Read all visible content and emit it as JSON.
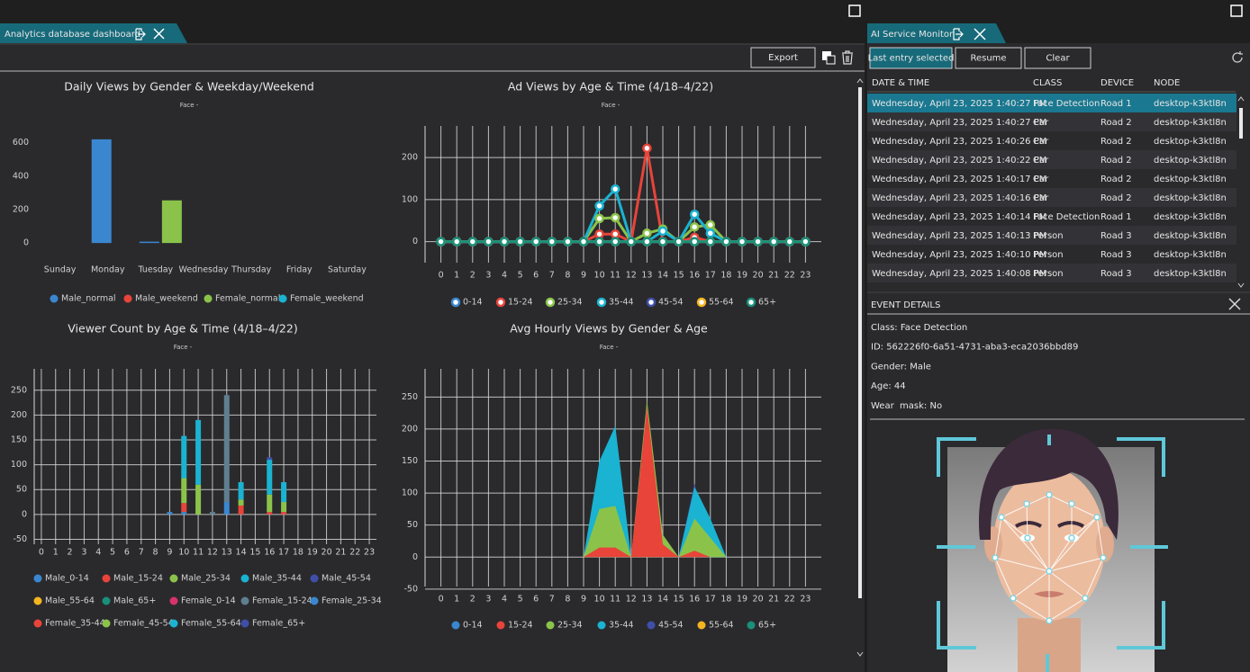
{
  "left_panel": {
    "tab_title": "Analytics database dashboard",
    "export_button": "Export"
  },
  "chart_data": [
    {
      "type": "bar",
      "title": "Daily Views by Gender & Weekday/Weekend",
      "subtitle": "Face -",
      "categories": [
        "Sunday",
        "Monday",
        "Tuesday",
        "Wednesday",
        "Thursday",
        "Friday",
        "Saturday"
      ],
      "series": [
        {
          "name": "Male_normal",
          "color": "#3a87d0",
          "values": [
            0,
            620,
            8,
            0,
            0,
            0,
            0
          ]
        },
        {
          "name": "Male_weekend",
          "color": "#e8443a",
          "values": [
            0,
            0,
            0,
            0,
            0,
            0,
            0
          ]
        },
        {
          "name": "Female_normal",
          "color": "#8bc34a",
          "values": [
            0,
            0,
            255,
            0,
            0,
            0,
            0
          ]
        },
        {
          "name": "Female_weekend",
          "color": "#1ab3d1",
          "values": [
            0,
            0,
            0,
            0,
            0,
            0,
            0
          ]
        }
      ],
      "ylim": [
        -80,
        700
      ],
      "yticks": [
        0,
        200,
        400,
        600
      ],
      "grid": false
    },
    {
      "type": "line",
      "title": "Ad Views by Age & Time (4/18–4/22)",
      "subtitle": "Face -",
      "x": [
        0,
        1,
        2,
        3,
        4,
        5,
        6,
        7,
        8,
        9,
        10,
        11,
        12,
        13,
        14,
        15,
        16,
        17,
        18,
        19,
        20,
        21,
        22,
        23
      ],
      "series": [
        {
          "name": "0-14",
          "color": "#3a87d0",
          "values": [
            0,
            0,
            0,
            0,
            0,
            0,
            0,
            0,
            0,
            0,
            0,
            0,
            0,
            0,
            0,
            0,
            0,
            0,
            0,
            0,
            0,
            0,
            0,
            0
          ]
        },
        {
          "name": "15-24",
          "color": "#e8443a",
          "values": [
            0,
            0,
            0,
            0,
            0,
            0,
            0,
            0,
            0,
            0,
            18,
            18,
            0,
            222,
            0,
            0,
            10,
            0,
            0,
            0,
            0,
            0,
            0,
            0
          ]
        },
        {
          "name": "25-34",
          "color": "#8bc34a",
          "values": [
            0,
            0,
            0,
            0,
            0,
            0,
            0,
            0,
            0,
            0,
            55,
            57,
            0,
            20,
            30,
            0,
            35,
            40,
            0,
            0,
            0,
            0,
            0,
            0
          ]
        },
        {
          "name": "35-44",
          "color": "#1ab3d1",
          "values": [
            0,
            0,
            0,
            0,
            0,
            0,
            0,
            0,
            0,
            0,
            85,
            125,
            0,
            0,
            25,
            0,
            65,
            20,
            0,
            0,
            0,
            0,
            0,
            0
          ]
        },
        {
          "name": "45-54",
          "color": "#3f4fa8",
          "values": [
            0,
            0,
            0,
            0,
            0,
            0,
            0,
            0,
            0,
            0,
            0,
            0,
            0,
            0,
            0,
            0,
            0,
            0,
            0,
            0,
            0,
            0,
            0,
            0
          ]
        },
        {
          "name": "55-64",
          "color": "#f5b51f",
          "values": [
            0,
            0,
            0,
            0,
            0,
            0,
            0,
            0,
            0,
            0,
            0,
            0,
            0,
            0,
            0,
            0,
            0,
            0,
            0,
            0,
            0,
            0,
            0,
            0
          ]
        },
        {
          "name": "65+",
          "color": "#1a8f7a",
          "values": [
            0,
            0,
            0,
            0,
            0,
            0,
            0,
            0,
            0,
            0,
            0,
            0,
            0,
            0,
            0,
            0,
            0,
            0,
            0,
            0,
            0,
            0,
            0,
            0
          ]
        }
      ],
      "xlim": [
        -1,
        24
      ],
      "ylim": [
        -50,
        275
      ],
      "yticks": [
        0,
        100,
        200
      ],
      "grid": true
    },
    {
      "type": "bar",
      "stacked": true,
      "title": "Viewer Count by Age & Time (4/18–4/22)",
      "subtitle": "Face -",
      "x": [
        0,
        1,
        2,
        3,
        4,
        5,
        6,
        7,
        8,
        9,
        10,
        11,
        12,
        13,
        14,
        15,
        16,
        17,
        18,
        19,
        20,
        21,
        22,
        23
      ],
      "series": [
        {
          "name": "Male_0-14",
          "color": "#3a87d0",
          "values": [
            0,
            0,
            0,
            0,
            0,
            0,
            0,
            0,
            0,
            5,
            5,
            0,
            0,
            25,
            0,
            0,
            0,
            0,
            0,
            0,
            0,
            0,
            0,
            0
          ]
        },
        {
          "name": "Male_15-24",
          "color": "#e8443a",
          "values": [
            0,
            0,
            0,
            0,
            0,
            0,
            0,
            0,
            0,
            0,
            18,
            0,
            0,
            0,
            18,
            0,
            5,
            5,
            0,
            0,
            0,
            0,
            0,
            0
          ]
        },
        {
          "name": "Male_25-34",
          "color": "#8bc34a",
          "values": [
            0,
            0,
            0,
            0,
            0,
            0,
            0,
            0,
            0,
            0,
            50,
            60,
            0,
            0,
            12,
            0,
            35,
            20,
            0,
            0,
            0,
            0,
            0,
            0
          ]
        },
        {
          "name": "Male_35-44",
          "color": "#1ab3d1",
          "values": [
            0,
            0,
            0,
            0,
            0,
            0,
            0,
            0,
            0,
            0,
            85,
            130,
            0,
            0,
            35,
            0,
            70,
            40,
            0,
            0,
            0,
            0,
            0,
            0
          ]
        },
        {
          "name": "Male_45-54",
          "color": "#3f4fa8",
          "values": [
            0,
            0,
            0,
            0,
            0,
            0,
            0,
            0,
            0,
            0,
            0,
            0,
            0,
            0,
            0,
            0,
            5,
            0,
            0,
            0,
            0,
            0,
            0,
            0
          ]
        },
        {
          "name": "Male_55-64",
          "color": "#f5b51f",
          "values": [
            0,
            0,
            0,
            0,
            0,
            0,
            0,
            0,
            0,
            0,
            0,
            0,
            0,
            0,
            0,
            0,
            0,
            0,
            0,
            0,
            0,
            0,
            0,
            0
          ]
        },
        {
          "name": "Male_65+",
          "color": "#1a8f7a",
          "values": [
            0,
            0,
            0,
            0,
            0,
            0,
            0,
            0,
            0,
            0,
            0,
            0,
            0,
            0,
            0,
            0,
            0,
            0,
            0,
            0,
            0,
            0,
            0,
            0
          ]
        },
        {
          "name": "Female_0-14",
          "color": "#d6336c",
          "values": [
            0,
            0,
            0,
            0,
            0,
            0,
            0,
            0,
            0,
            0,
            0,
            0,
            0,
            0,
            0,
            0,
            0,
            0,
            0,
            0,
            0,
            0,
            0,
            0
          ]
        },
        {
          "name": "Female_15-24",
          "color": "#5f7f8f",
          "values": [
            0,
            0,
            0,
            0,
            0,
            0,
            0,
            0,
            0,
            0,
            0,
            0,
            5,
            215,
            0,
            0,
            0,
            0,
            0,
            0,
            0,
            0,
            0,
            0
          ]
        },
        {
          "name": "Female_25-34",
          "color": "#3a87d0",
          "values": [
            0,
            0,
            0,
            0,
            0,
            0,
            0,
            0,
            0,
            0,
            0,
            0,
            0,
            0,
            0,
            0,
            0,
            0,
            0,
            0,
            0,
            0,
            0,
            0
          ]
        },
        {
          "name": "Female_35-44",
          "color": "#e8443a",
          "values": [
            0,
            0,
            0,
            0,
            0,
            0,
            0,
            0,
            0,
            0,
            0,
            0,
            0,
            0,
            0,
            0,
            0,
            0,
            0,
            0,
            0,
            0,
            0,
            0
          ]
        },
        {
          "name": "Female_45-54",
          "color": "#8bc34a",
          "values": [
            0,
            0,
            0,
            0,
            0,
            0,
            0,
            0,
            0,
            0,
            0,
            0,
            0,
            0,
            0,
            0,
            0,
            0,
            0,
            0,
            0,
            0,
            0,
            0
          ]
        },
        {
          "name": "Female_55-64",
          "color": "#1ab3d1",
          "values": [
            0,
            0,
            0,
            0,
            0,
            0,
            0,
            0,
            0,
            0,
            0,
            0,
            0,
            0,
            0,
            0,
            0,
            0,
            0,
            0,
            0,
            0,
            0,
            0
          ]
        },
        {
          "name": "Female_65+",
          "color": "#3f4fa8",
          "values": [
            0,
            0,
            0,
            0,
            0,
            0,
            0,
            0,
            0,
            0,
            0,
            0,
            0,
            0,
            0,
            0,
            0,
            0,
            0,
            0,
            0,
            0,
            0,
            0
          ]
        }
      ],
      "xlim": [
        -0.5,
        23.5
      ],
      "ylim": [
        -60,
        293
      ],
      "yticks": [
        -50,
        0,
        50,
        100,
        150,
        200,
        250
      ],
      "grid": true
    },
    {
      "type": "area",
      "title": "Avg Hourly Views by Gender & Age",
      "subtitle": "Face -",
      "x": [
        0,
        1,
        2,
        3,
        4,
        5,
        6,
        7,
        8,
        9,
        10,
        11,
        12,
        13,
        14,
        15,
        16,
        17,
        18,
        19,
        20,
        21,
        22,
        23
      ],
      "series": [
        {
          "name": "0-14",
          "color": "#3a87d0",
          "values": [
            0,
            0,
            0,
            0,
            0,
            0,
            0,
            0,
            0,
            0,
            0,
            0,
            0,
            0,
            0,
            0,
            0,
            0,
            0,
            0,
            0,
            0,
            0,
            0
          ]
        },
        {
          "name": "15-24",
          "color": "#e8443a",
          "values": [
            0,
            0,
            0,
            0,
            0,
            0,
            0,
            0,
            0,
            0,
            15,
            15,
            0,
            235,
            20,
            0,
            10,
            0,
            0,
            0,
            0,
            0,
            0,
            0
          ]
        },
        {
          "name": "25-34",
          "color": "#8bc34a",
          "values": [
            0,
            0,
            0,
            0,
            0,
            0,
            0,
            0,
            0,
            0,
            75,
            80,
            0,
            245,
            35,
            0,
            60,
            30,
            0,
            0,
            0,
            0,
            0,
            0
          ]
        },
        {
          "name": "35-44",
          "color": "#1ab3d1",
          "values": [
            0,
            0,
            0,
            0,
            0,
            0,
            0,
            0,
            0,
            0,
            150,
            205,
            0,
            0,
            30,
            0,
            110,
            60,
            0,
            0,
            0,
            0,
            0,
            0
          ]
        },
        {
          "name": "45-54",
          "color": "#3f4fa8",
          "values": [
            0,
            0,
            0,
            0,
            0,
            0,
            0,
            0,
            0,
            0,
            0,
            0,
            0,
            0,
            0,
            0,
            115,
            0,
            0,
            0,
            0,
            0,
            0,
            0
          ]
        },
        {
          "name": "55-64",
          "color": "#f5b51f",
          "values": [
            0,
            0,
            0,
            0,
            0,
            0,
            0,
            0,
            0,
            0,
            0,
            0,
            0,
            0,
            0,
            0,
            0,
            0,
            0,
            0,
            0,
            0,
            0,
            0
          ]
        },
        {
          "name": "65+",
          "color": "#1a8f7a",
          "values": [
            0,
            0,
            0,
            0,
            0,
            0,
            0,
            0,
            0,
            0,
            0,
            0,
            0,
            0,
            0,
            0,
            0,
            0,
            0,
            0,
            0,
            0,
            0,
            0
          ]
        }
      ],
      "xlim": [
        -1,
        24
      ],
      "ylim": [
        -46,
        294
      ],
      "yticks": [
        -50,
        0,
        50,
        100,
        150,
        200,
        250
      ],
      "grid": true
    }
  ],
  "right_panel": {
    "tab_title": "AI Service Monitor",
    "buttons": [
      "Last entry selected",
      "Resume",
      "Clear"
    ],
    "table": {
      "columns": [
        "DATE & TIME",
        "CLASS",
        "DEVICE",
        "NODE"
      ],
      "rows": [
        [
          "Wednesday, April 23, 2025 1:40:27 PM",
          "Face Detection",
          "Road 1",
          "desktop-k3ktl8n"
        ],
        [
          "Wednesday, April 23, 2025 1:40:27 PM",
          "Car",
          "Road 2",
          "desktop-k3ktl8n"
        ],
        [
          "Wednesday, April 23, 2025 1:40:26 PM",
          "Car",
          "Road 2",
          "desktop-k3ktl8n"
        ],
        [
          "Wednesday, April 23, 2025 1:40:22 PM",
          "Car",
          "Road 2",
          "desktop-k3ktl8n"
        ],
        [
          "Wednesday, April 23, 2025 1:40:17 PM",
          "Car",
          "Road 2",
          "desktop-k3ktl8n"
        ],
        [
          "Wednesday, April 23, 2025 1:40:16 PM",
          "Car",
          "Road 2",
          "desktop-k3ktl8n"
        ],
        [
          "Wednesday, April 23, 2025 1:40:14 PM",
          "Face Detection",
          "Road 1",
          "desktop-k3ktl8n"
        ],
        [
          "Wednesday, April 23, 2025 1:40:13 PM",
          "Person",
          "Road 3",
          "desktop-k3ktl8n"
        ],
        [
          "Wednesday, April 23, 2025 1:40:10 PM",
          "Person",
          "Road 3",
          "desktop-k3ktl8n"
        ],
        [
          "Wednesday, April 23, 2025 1:40:08 PM",
          "Person",
          "Road 3",
          "desktop-k3ktl8n"
        ]
      ]
    },
    "event_details": {
      "title": "EVENT DETAILS",
      "lines": [
        "Class: Face Detection",
        "ID: 562226f0-6a51-4731-aba3-eca2036bbd89",
        "Gender: Male",
        "Age: 44",
        "Wear  mask: No"
      ]
    }
  }
}
